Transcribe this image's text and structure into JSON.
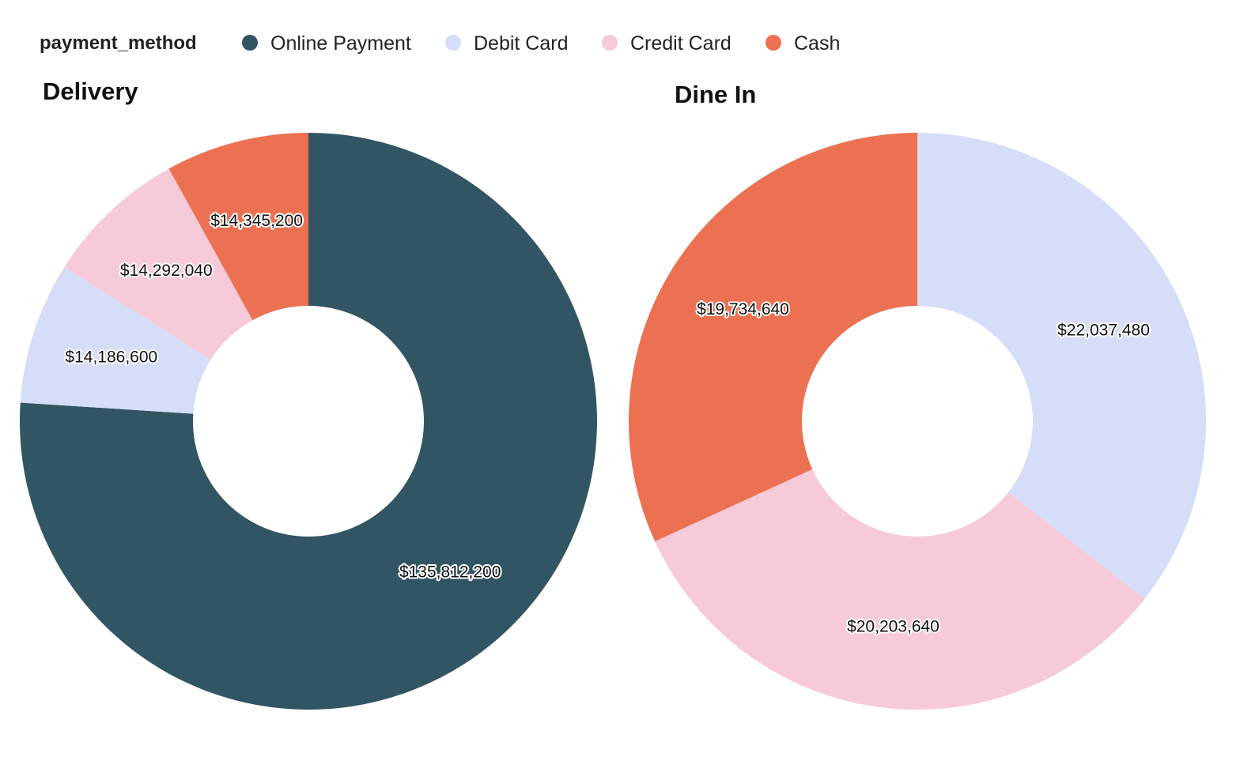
{
  "legend": {
    "title": "payment_method",
    "items": [
      {
        "label": "Online Payment",
        "color": "#325563"
      },
      {
        "label": "Debit Card",
        "color": "#d5ddf9"
      },
      {
        "label": "Credit Card",
        "color": "#f6cad8"
      },
      {
        "label": "Cash",
        "color": "#ec7152"
      }
    ]
  },
  "chart_data": [
    {
      "type": "pie",
      "donut": true,
      "title": "Delivery",
      "slices": [
        {
          "category": "Online Payment",
          "value": 135812200,
          "label": "$135,812,200",
          "color": "#325563"
        },
        {
          "category": "Debit Card",
          "value": 14186600,
          "label": "$14,186,600",
          "color": "#d5ddf9"
        },
        {
          "category": "Credit Card",
          "value": 14292040,
          "label": "$14,292,040",
          "color": "#f6cad8"
        },
        {
          "category": "Cash",
          "value": 14345200,
          "label": "$14,345,200",
          "color": "#ec7152"
        }
      ]
    },
    {
      "type": "pie",
      "donut": true,
      "title": "Dine In",
      "slices": [
        {
          "category": "Debit Card",
          "value": 22037480,
          "label": "$22,037,480",
          "color": "#d5ddf9"
        },
        {
          "category": "Credit Card",
          "value": 20203640,
          "label": "$20,203,640",
          "color": "#f6cad8"
        },
        {
          "category": "Cash",
          "value": 19734640,
          "label": "$19,734,640",
          "color": "#ec7152"
        }
      ]
    }
  ]
}
